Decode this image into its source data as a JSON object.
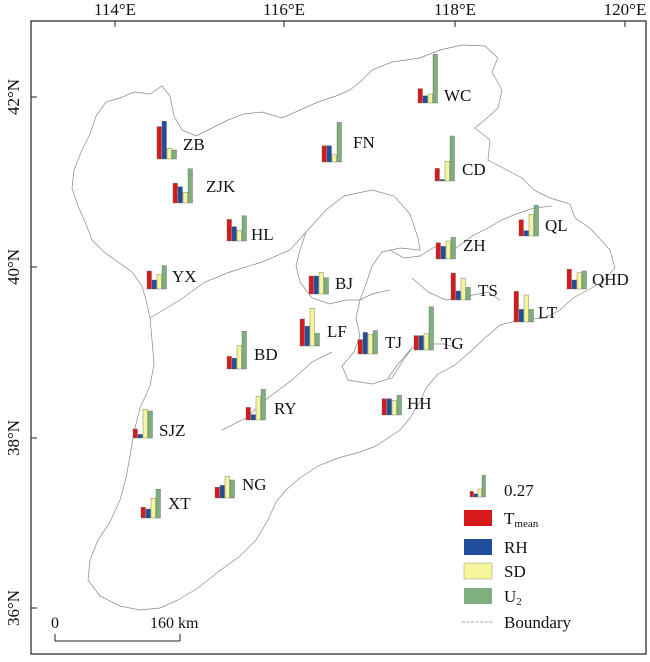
{
  "map": {
    "lon_ticks": [
      {
        "value": "114°E"
      },
      {
        "value": "116°E"
      },
      {
        "value": "118°E"
      },
      {
        "value": "120°E"
      }
    ],
    "lat_ticks": [
      {
        "value": "42°N"
      },
      {
        "value": "40°N"
      },
      {
        "value": "38°N"
      },
      {
        "value": "36°N"
      }
    ]
  },
  "stations": [
    {
      "name": "WC",
      "values": [
        0.08,
        0.04,
        0.05,
        0.27
      ]
    },
    {
      "name": "ZB",
      "values": [
        0.18,
        0.21,
        0.06,
        0.05
      ]
    },
    {
      "name": "FN",
      "values": [
        0.09,
        0.09,
        0.04,
        0.22
      ]
    },
    {
      "name": "CD",
      "values": [
        0.07,
        0.0,
        0.11,
        0.25
      ]
    },
    {
      "name": "ZJK",
      "values": [
        0.11,
        0.09,
        0.06,
        0.19
      ]
    },
    {
      "name": "HL",
      "values": [
        0.12,
        0.08,
        0.06,
        0.14
      ]
    },
    {
      "name": "ZH",
      "values": [
        0.09,
        0.07,
        0.1,
        0.12
      ]
    },
    {
      "name": "QL",
      "values": [
        0.09,
        0.03,
        0.12,
        0.17
      ]
    },
    {
      "name": "YX",
      "values": [
        0.1,
        0.05,
        0.08,
        0.13
      ]
    },
    {
      "name": "BJ",
      "values": [
        0.1,
        0.1,
        0.12,
        0.09
      ]
    },
    {
      "name": "TS",
      "values": [
        0.15,
        0.05,
        0.12,
        0.07
      ]
    },
    {
      "name": "QHD",
      "values": [
        0.11,
        0.05,
        0.09,
        0.1
      ]
    },
    {
      "name": "LT",
      "values": [
        0.17,
        0.07,
        0.15,
        0.07
      ]
    },
    {
      "name": "LF",
      "values": [
        0.15,
        0.11,
        0.21,
        0.07
      ]
    },
    {
      "name": "TJ",
      "values": [
        0.08,
        0.12,
        0.11,
        0.13
      ]
    },
    {
      "name": "TG",
      "values": [
        0.08,
        0.08,
        0.09,
        0.24
      ]
    },
    {
      "name": "BD",
      "values": [
        0.07,
        0.06,
        0.13,
        0.21
      ]
    },
    {
      "name": "RY",
      "values": [
        0.07,
        0.03,
        0.13,
        0.17
      ]
    },
    {
      "name": "HH",
      "values": [
        0.09,
        0.09,
        0.08,
        0.11
      ]
    },
    {
      "name": "SJZ",
      "values": [
        0.05,
        0.02,
        0.16,
        0.15
      ]
    },
    {
      "name": "NG",
      "values": [
        0.06,
        0.07,
        0.12,
        0.1
      ]
    },
    {
      "name": "XT",
      "values": [
        0.06,
        0.05,
        0.11,
        0.16
      ]
    }
  ],
  "legend": {
    "scale_value": "0.27",
    "items": [
      {
        "label": "T",
        "sub": "mean",
        "color": "#d7191c"
      },
      {
        "label": "RH",
        "sub": "",
        "color": "#1f4e9c"
      },
      {
        "label": "SD",
        "sub": "",
        "color": "#f5f59a"
      },
      {
        "label": "U",
        "sub": "2",
        "color": "#7fae7f"
      }
    ],
    "boundary_label": "Boundary"
  },
  "scale_bar": {
    "start_label": "0",
    "end_label": "160 km"
  },
  "colors": {
    "t_mean": "#d7191c",
    "rh": "#1f4e9c",
    "sd": "#f5f59a",
    "u2": "#7fae7f",
    "boundary": "#888888"
  }
}
